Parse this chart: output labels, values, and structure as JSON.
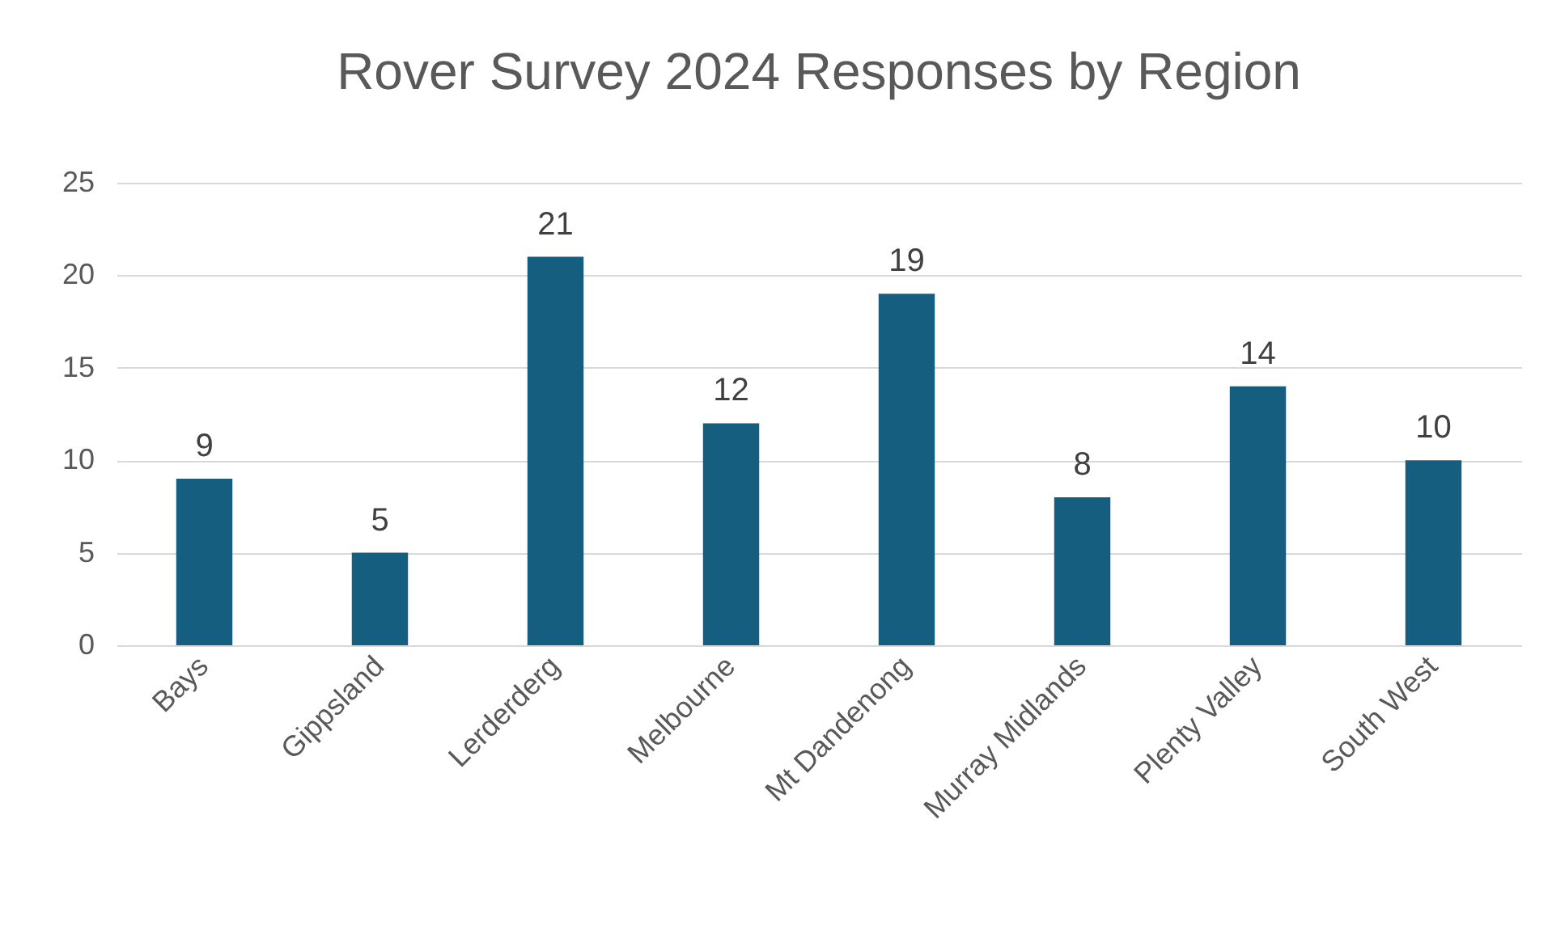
{
  "chart_data": {
    "type": "bar",
    "title": "Rover Survey 2024 Responses by Region",
    "categories": [
      "Bays",
      "Gippsland",
      "Lerderderg",
      "Melbourne",
      "Mt Dandenong",
      "Murray Midlands",
      "Plenty Valley",
      "South West"
    ],
    "values": [
      9,
      5,
      21,
      12,
      19,
      8,
      14,
      10
    ],
    "color": "#165e80",
    "ylim": [
      0,
      25
    ],
    "yticks": [
      0,
      5,
      10,
      15,
      20,
      25
    ],
    "grid": "y",
    "data_labels": true
  }
}
